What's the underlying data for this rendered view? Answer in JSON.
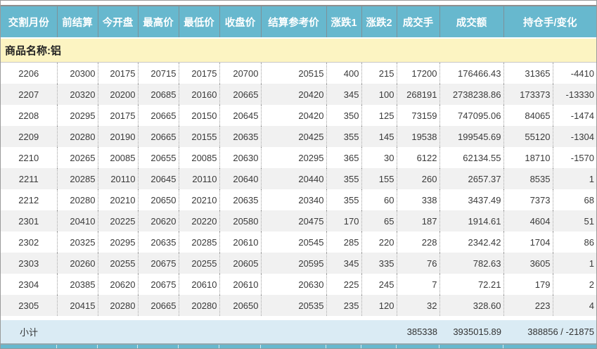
{
  "product": {
    "label": "商品名称:铝"
  },
  "table": {
    "headers": [
      {
        "label": "交割月份",
        "span": 1
      },
      {
        "label": "前结算",
        "span": 1
      },
      {
        "label": "今开盘",
        "span": 1
      },
      {
        "label": "最高价",
        "span": 1
      },
      {
        "label": "最低价",
        "span": 1
      },
      {
        "label": "收盘价",
        "span": 1
      },
      {
        "label": "结算参考价",
        "span": 1
      },
      {
        "label": "涨跌1",
        "span": 1
      },
      {
        "label": "涨跌2",
        "span": 1
      },
      {
        "label": "成交手",
        "span": 1
      },
      {
        "label": "成交额",
        "span": 1
      },
      {
        "label": "持仓手/变化",
        "span": 2
      }
    ],
    "column_keys": [
      "delivery-month",
      "prev-settlement",
      "open",
      "high",
      "low",
      "close",
      "settlement-ref-price",
      "change-1",
      "change-2",
      "volume-lots",
      "turnover",
      "open-interest",
      "oi-change"
    ],
    "rows": [
      [
        "2206",
        "20300",
        "20175",
        "20715",
        "20175",
        "20700",
        "20515",
        "400",
        "215",
        "17200",
        "176466.43",
        "31365",
        "-4410"
      ],
      [
        "2207",
        "20320",
        "20200",
        "20685",
        "20160",
        "20665",
        "20420",
        "345",
        "100",
        "268191",
        "2738238.86",
        "173373",
        "-13330"
      ],
      [
        "2208",
        "20295",
        "20175",
        "20665",
        "20150",
        "20645",
        "20420",
        "350",
        "125",
        "73159",
        "747095.06",
        "84065",
        "-1474"
      ],
      [
        "2209",
        "20280",
        "20190",
        "20665",
        "20155",
        "20635",
        "20425",
        "355",
        "145",
        "19538",
        "199545.69",
        "55120",
        "-1304"
      ],
      [
        "2210",
        "20265",
        "20085",
        "20655",
        "20085",
        "20630",
        "20295",
        "365",
        "30",
        "6122",
        "62134.55",
        "18710",
        "-1570"
      ],
      [
        "2211",
        "20285",
        "20110",
        "20645",
        "20110",
        "20640",
        "20440",
        "355",
        "155",
        "260",
        "2657.37",
        "8535",
        "1"
      ],
      [
        "2212",
        "20280",
        "20210",
        "20650",
        "20210",
        "20635",
        "20340",
        "355",
        "60",
        "338",
        "3437.49",
        "7373",
        "68"
      ],
      [
        "2301",
        "20410",
        "20225",
        "20620",
        "20220",
        "20580",
        "20475",
        "170",
        "65",
        "187",
        "1914.61",
        "4604",
        "51"
      ],
      [
        "2302",
        "20325",
        "20295",
        "20635",
        "20285",
        "20610",
        "20545",
        "285",
        "220",
        "228",
        "2342.42",
        "1704",
        "86"
      ],
      [
        "2303",
        "20260",
        "20255",
        "20675",
        "20255",
        "20605",
        "20595",
        "345",
        "335",
        "76",
        "782.63",
        "3605",
        "1"
      ],
      [
        "2304",
        "20385",
        "20620",
        "20675",
        "20610",
        "20610",
        "20630",
        "225",
        "245",
        "7",
        "72.21",
        "179",
        "2"
      ],
      [
        "2305",
        "20415",
        "20280",
        "20665",
        "20280",
        "20650",
        "20535",
        "235",
        "120",
        "32",
        "328.60",
        "223",
        "4"
      ]
    ],
    "subtotal": {
      "label": "小计",
      "volume": "385338",
      "turnover": "3935015.89",
      "oi_and_change": "388856 / -21875"
    }
  },
  "colors": {
    "header_bg": "#67B8CE",
    "header_text": "#FFFFFF",
    "product_row_bg": "#FCF4C2",
    "row_bg": "#FFFFFF",
    "row_alt_bg": "#F1F1F1",
    "subtotal_bg": "#DAEBF4",
    "data_text": "#3A3A3A",
    "next_section_edge": "#67B8CE"
  }
}
